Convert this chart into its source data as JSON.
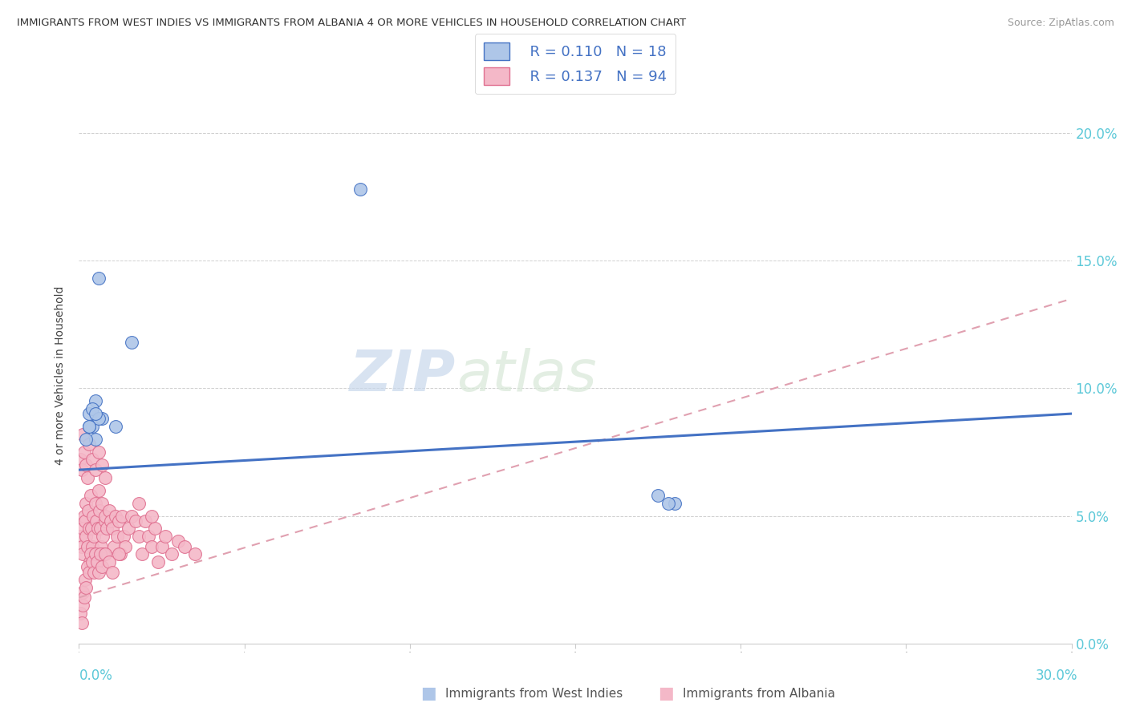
{
  "title": "IMMIGRANTS FROM WEST INDIES VS IMMIGRANTS FROM ALBANIA 4 OR MORE VEHICLES IN HOUSEHOLD CORRELATION CHART",
  "source": "Source: ZipAtlas.com",
  "ylabel": "4 or more Vehicles in Household",
  "ytick_values": [
    0.0,
    5.0,
    10.0,
    15.0,
    20.0
  ],
  "ytick_labels": [
    "0.0%",
    "5.0%",
    "10.0%",
    "15.0%",
    "20.0%"
  ],
  "xlim": [
    0.0,
    30.0
  ],
  "ylim": [
    0.0,
    21.0
  ],
  "legend_r_west_indies": "R = 0.110",
  "legend_n_west_indies": "N = 18",
  "legend_r_albania": "R = 0.137",
  "legend_n_albania": "N = 94",
  "west_indies_color": "#aec6e8",
  "west_indies_edge_color": "#4472c4",
  "albania_color": "#f4b8c8",
  "albania_edge_color": "#e07090",
  "west_indies_line_color": "#4472c4",
  "albania_line_color": "#e0a0b0",
  "watermark_color": "#d0dff0",
  "west_indies_line_start_y": 6.8,
  "west_indies_line_end_y": 9.0,
  "albania_line_start_y": 1.8,
  "albania_line_end_y": 13.5,
  "west_indies_scatter_x": [
    8.5,
    0.6,
    1.6,
    0.4,
    0.5,
    0.3,
    0.7,
    1.1,
    0.3,
    0.5,
    0.4,
    0.6,
    0.5,
    0.3,
    17.5,
    18.0,
    17.8,
    0.2
  ],
  "west_indies_scatter_y": [
    17.8,
    14.3,
    11.8,
    8.5,
    8.0,
    8.5,
    8.8,
    8.5,
    9.0,
    9.5,
    9.2,
    8.8,
    9.0,
    8.5,
    5.8,
    5.5,
    5.5,
    8.0
  ],
  "albania_scatter_x": [
    0.05,
    0.08,
    0.1,
    0.12,
    0.15,
    0.18,
    0.2,
    0.22,
    0.25,
    0.28,
    0.3,
    0.32,
    0.35,
    0.38,
    0.4,
    0.42,
    0.45,
    0.48,
    0.5,
    0.52,
    0.55,
    0.58,
    0.6,
    0.62,
    0.65,
    0.68,
    0.7,
    0.72,
    0.75,
    0.78,
    0.8,
    0.85,
    0.9,
    0.95,
    1.0,
    1.05,
    1.1,
    1.15,
    1.2,
    1.25,
    1.3,
    1.35,
    1.4,
    1.5,
    1.6,
    1.7,
    1.8,
    1.9,
    2.0,
    2.1,
    2.2,
    2.3,
    2.4,
    2.5,
    2.6,
    2.8,
    3.0,
    3.2,
    3.5,
    0.05,
    0.08,
    0.1,
    0.12,
    0.15,
    0.18,
    0.2,
    0.25,
    0.3,
    0.35,
    0.4,
    0.45,
    0.5,
    0.55,
    0.6,
    0.65,
    0.7,
    0.8,
    0.9,
    1.0,
    1.2,
    0.05,
    0.08,
    0.1,
    0.15,
    0.2,
    0.25,
    0.3,
    0.4,
    0.5,
    0.6,
    0.7,
    0.8,
    1.8,
    2.2
  ],
  "albania_scatter_y": [
    4.2,
    3.8,
    4.5,
    3.5,
    5.0,
    4.8,
    5.5,
    4.2,
    3.8,
    5.2,
    4.5,
    3.2,
    5.8,
    4.5,
    3.8,
    5.0,
    4.2,
    3.5,
    5.5,
    4.8,
    3.2,
    4.5,
    6.0,
    5.2,
    4.5,
    3.8,
    5.5,
    4.2,
    3.5,
    4.8,
    5.0,
    4.5,
    5.2,
    4.8,
    4.5,
    3.8,
    5.0,
    4.2,
    4.8,
    3.5,
    5.0,
    4.2,
    3.8,
    4.5,
    5.0,
    4.8,
    4.2,
    3.5,
    4.8,
    4.2,
    3.8,
    4.5,
    3.2,
    3.8,
    4.2,
    3.5,
    4.0,
    3.8,
    3.5,
    1.2,
    0.8,
    1.5,
    2.0,
    1.8,
    2.5,
    2.2,
    3.0,
    2.8,
    3.5,
    3.2,
    2.8,
    3.5,
    3.2,
    2.8,
    3.5,
    3.0,
    3.5,
    3.2,
    2.8,
    3.5,
    7.2,
    6.8,
    8.2,
    7.5,
    7.0,
    6.5,
    7.8,
    7.2,
    6.8,
    7.5,
    7.0,
    6.5,
    5.5,
    5.0
  ]
}
